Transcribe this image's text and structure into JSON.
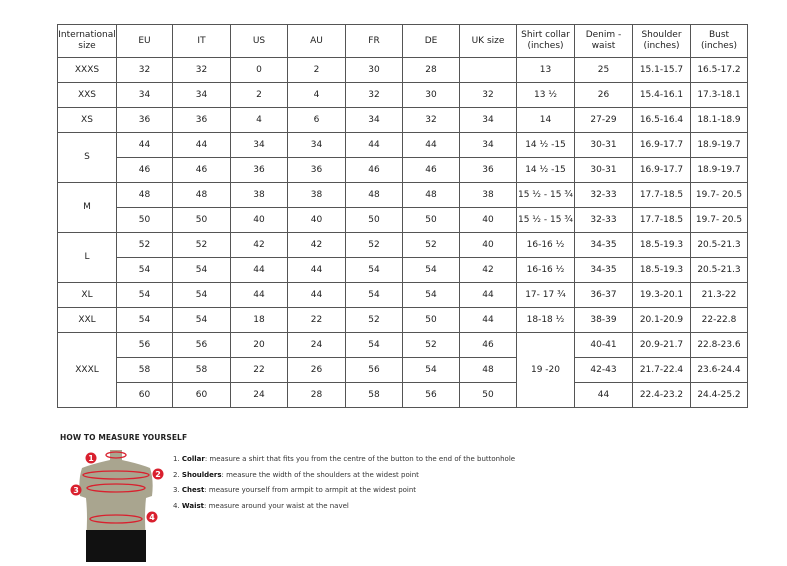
{
  "table": {
    "headers": [
      "International size",
      "EU",
      "IT",
      "US",
      "AU",
      "FR",
      "DE",
      "UK size",
      "Shirt collar (inches)",
      "Denim - waist",
      "Shoulder (inches)",
      "Bust (inches)"
    ],
    "groups": [
      {
        "size": "XXXS",
        "rows": [
          [
            "32",
            "32",
            "0",
            "2",
            "30",
            "28",
            "",
            "13",
            "25",
            "15.1-15.7",
            "16.5-17.2"
          ]
        ]
      },
      {
        "size": "XXS",
        "rows": [
          [
            "34",
            "34",
            "2",
            "4",
            "32",
            "30",
            "32",
            "13 ½",
            "26",
            "15.4-16.1",
            "17.3-18.1"
          ]
        ]
      },
      {
        "size": "XS",
        "rows": [
          [
            "36",
            "36",
            "4",
            "6",
            "34",
            "32",
            "34",
            "14",
            "27-29",
            "16.5-16.4",
            "18.1-18.9"
          ]
        ]
      },
      {
        "size": "S",
        "rows": [
          [
            "44",
            "44",
            "34",
            "34",
            "44",
            "44",
            "34",
            "14 ½ -15",
            "30-31",
            "16.9-17.7",
            "18.9-19.7"
          ],
          [
            "46",
            "46",
            "36",
            "36",
            "46",
            "46",
            "36",
            "14 ½ -15",
            "30-31",
            "16.9-17.7",
            "18.9-19.7"
          ]
        ]
      },
      {
        "size": "M",
        "rows": [
          [
            "48",
            "48",
            "38",
            "38",
            "48",
            "48",
            "38",
            "15 ½ - 15 ¾",
            "32-33",
            "17.7-18.5",
            "19.7- 20.5"
          ],
          [
            "50",
            "50",
            "40",
            "40",
            "50",
            "50",
            "40",
            "15 ½ - 15 ¾",
            "32-33",
            "17.7-18.5",
            "19.7- 20.5"
          ]
        ]
      },
      {
        "size": "L",
        "rows": [
          [
            "52",
            "52",
            "42",
            "42",
            "52",
            "52",
            "40",
            "16-16 ½",
            "34-35",
            "18.5-19.3",
            "20.5-21.3"
          ],
          [
            "54",
            "54",
            "44",
            "44",
            "54",
            "54",
            "42",
            "16-16 ½",
            "34-35",
            "18.5-19.3",
            "20.5-21.3"
          ]
        ]
      },
      {
        "size": "XL",
        "rows": [
          [
            "54",
            "54",
            "44",
            "44",
            "54",
            "54",
            "44",
            "17- 17 ¾",
            "36-37",
            "19.3-20.1",
            "21.3-22"
          ]
        ]
      },
      {
        "size": "XXL",
        "rows": [
          [
            "54",
            "54",
            "18",
            "22",
            "52",
            "50",
            "44",
            "18-18 ½",
            "38-39",
            "20.1-20.9",
            "22-22.8"
          ]
        ]
      },
      {
        "size": "XXXL",
        "collar_merged": "19 -20",
        "rows": [
          [
            "56",
            "56",
            "20",
            "24",
            "54",
            "52",
            "46",
            "",
            "40-41",
            "20.9-21.7",
            "22.8-23.6"
          ],
          [
            "58",
            "58",
            "22",
            "26",
            "56",
            "54",
            "48",
            "",
            "42-43",
            "21.7-22.4",
            "23.6-24.4"
          ],
          [
            "60",
            "60",
            "24",
            "28",
            "58",
            "56",
            "50",
            "",
            "44",
            "22.4-23.2",
            "24.4-25.2"
          ]
        ]
      }
    ]
  },
  "measure": {
    "title": "HOW TO MEASURE YOURSELF",
    "steps": [
      {
        "num": "1.",
        "term": "Collar",
        "text": ": measure a shirt that fits you from the centre of the button to the end of the buttonhole"
      },
      {
        "num": "2.",
        "term": "Shoulders",
        "text": ": measure the width of the shoulders at the widest point"
      },
      {
        "num": "3.",
        "term": "Chest",
        "text": ": measure yourself from armpit to armpit at the widest point"
      },
      {
        "num": "4.",
        "term": "Waist",
        "text": ": measure around your waist at the navel"
      }
    ],
    "markers": [
      "1",
      "2",
      "3",
      "4"
    ],
    "colors": {
      "body": "#a9a58f",
      "marker": "#d9202e",
      "shorts": "#111111"
    }
  }
}
